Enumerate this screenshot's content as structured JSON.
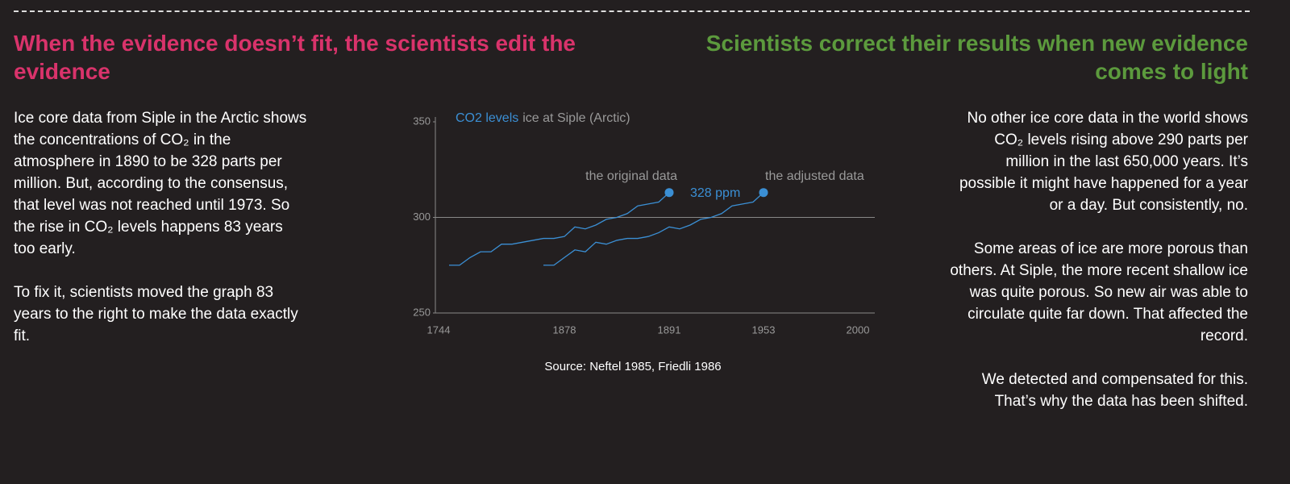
{
  "left": {
    "heading": "When the evidence doesn’t fit, the scientists edit the evidence",
    "paragraphs": [
      "Ice core data from Siple in the Arctic shows the concentrations of CO₂ in the atmosphere in 1890 to be 328 parts per million.  But, according to the consensus, that level was not reached until 1973. So the rise in CO₂ levels happens 83 years too early.",
      "To fix it, scientists moved the graph 83 years to the right to make the data exactly fit."
    ]
  },
  "right": {
    "heading": "Scientists correct their results when new evidence comes to light",
    "paragraphs": [
      "No other ice core data in the world shows CO₂ levels rising above 290 parts per million in the last 650,000 years. It’s possible it might have happened for a year or a day. But consistently, no.",
      "Some areas of ice are more porous than others. At Siple, the more recent shallow ice was quite porous. So new air was able to circulate quite far down. That affected the record.",
      "We detected and compensated for this. That’s why the data has been shifted."
    ]
  },
  "chart_data": {
    "type": "line",
    "title": "CO2 levels",
    "subtitle": "ice at Siple (Arctic)",
    "source": "Source: Neftel 1985, Friedli 1986",
    "categories": [
      "1744",
      null,
      null,
      null,
      null,
      null,
      null,
      null,
      null,
      null,
      null,
      null,
      "1878",
      null,
      null,
      null,
      null,
      null,
      null,
      null,
      null,
      null,
      "1891",
      null,
      null,
      null,
      null,
      null,
      null,
      null,
      null,
      "1953",
      null,
      null,
      null,
      null,
      null,
      null,
      null,
      null,
      "2000"
    ],
    "series": [
      {
        "name": "the original data",
        "color": "#3b8fd4",
        "values": [
          null,
          275,
          275,
          279,
          282,
          282,
          286,
          286,
          287,
          288,
          289,
          289,
          290,
          295,
          294,
          296,
          299,
          300,
          302,
          306,
          307,
          308,
          313,
          null,
          null,
          null,
          null,
          null,
          null,
          null,
          null,
          null,
          null,
          null,
          null,
          null,
          null,
          null,
          null,
          null,
          null
        ]
      },
      {
        "name": "the adjusted data",
        "color": "#3b8fd4",
        "values": [
          null,
          null,
          null,
          null,
          null,
          null,
          null,
          null,
          null,
          null,
          275,
          275,
          279,
          283,
          282,
          287,
          286,
          288,
          289,
          289,
          290,
          292,
          295,
          294,
          296,
          299,
          300,
          302,
          306,
          307,
          308,
          313,
          null,
          null,
          null,
          null,
          null,
          null,
          null,
          null,
          null
        ]
      }
    ],
    "annotation": "328 ppm",
    "ylim": [
      250,
      350
    ],
    "yticks": [
      250,
      300,
      350
    ],
    "grid_lines": [
      300
    ]
  }
}
